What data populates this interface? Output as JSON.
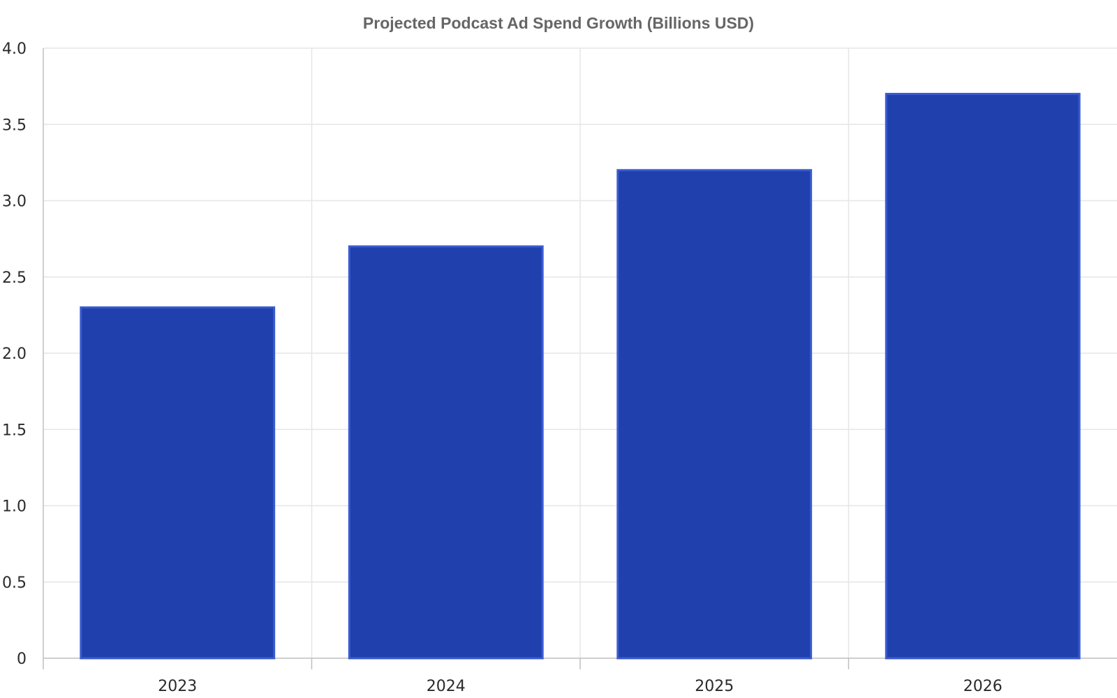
{
  "chart_data": {
    "type": "bar",
    "title": "Projected Podcast Ad Spend Growth (Billions USD)",
    "categories": [
      "2023",
      "2024",
      "2025",
      "2026"
    ],
    "values": [
      2.3,
      2.7,
      3.2,
      3.7
    ],
    "xlabel": "",
    "ylabel": "",
    "ylim": [
      0,
      4
    ],
    "yticks": [
      "0",
      "0.5",
      "1.0",
      "1.5",
      "2.0",
      "2.5",
      "3.0",
      "3.5",
      "4.0"
    ],
    "grid": true,
    "legend": "none",
    "colors": {
      "bar_fill": "#1F40AD",
      "bar_edge": "#3A5BD0",
      "grid": "#E6E6E6",
      "axis": "#BFBFBF",
      "title": "#666666"
    }
  }
}
